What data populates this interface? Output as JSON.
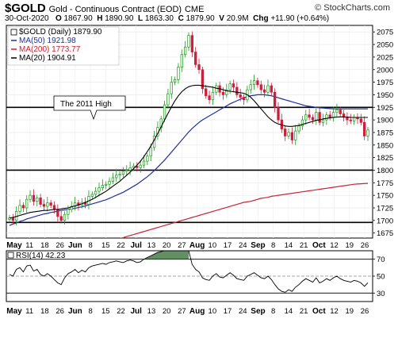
{
  "header": {
    "symbol": "$GOLD",
    "description": "Gold - Continuous Contract (EOD)",
    "exchange": "CME",
    "brand": "© StockCharts.com",
    "date": "30-Oct-2020",
    "open_label": "O",
    "open": "1867.90",
    "high_label": "H",
    "high": "1890.90",
    "low_label": "L",
    "low": "1863.30",
    "close_label": "C",
    "close": "1879.90",
    "vol_label": "V",
    "volume": "20.9M",
    "chg_label": "Chg",
    "change": "+11.90 (+0.64%)"
  },
  "legend": {
    "main": "$GOLD (Daily) 1879.90",
    "ma50": "MA(50) 1921.98",
    "ma200": "MA(200) 1773.77",
    "ma20": "MA(20) 1904.91"
  },
  "annotation": "The 2011 High",
  "rsi_label": "RSI(14) 42.23",
  "colors": {
    "ma50": "#1f2fa3",
    "ma200": "#cc2233",
    "ma20": "#000000",
    "up": "#1a9a1a",
    "down": "#cc1f3a",
    "rsi_fill": "#2e6b2e"
  },
  "chart_data": {
    "type": "candlestick",
    "title": "$GOLD Gold - Continuous Contract (EOD)",
    "y_ticks": [
      1675,
      1700,
      1725,
      1750,
      1775,
      1800,
      1825,
      1850,
      1875,
      1900,
      1925,
      1950,
      1975,
      2000,
      2025,
      2050,
      2075
    ],
    "ylim": [
      1665,
      2088
    ],
    "horizontal_lines": [
      1925,
      1800,
      1696
    ],
    "x_labels_top": [
      "May",
      "11",
      "18",
      "26",
      "Jun",
      "8",
      "15",
      "22",
      "Jul",
      "13",
      "20",
      "27",
      "Aug",
      "10",
      "17",
      "24",
      "Sep",
      "8",
      "14",
      "21",
      "Oct",
      "12",
      "19",
      "26"
    ],
    "x_labels_bottom": [
      "May",
      "11",
      "18",
      "26",
      "Jun",
      "8",
      "15",
      "22",
      "Jul",
      "13",
      "20",
      "27",
      "Aug",
      "10",
      "17",
      "24",
      "Sep",
      "8",
      "14",
      "21",
      "Oct",
      "12",
      "19",
      "26"
    ],
    "close_series": [
      1705,
      1700,
      1718,
      1730,
      1725,
      1742,
      1750,
      1738,
      1745,
      1732,
      1728,
      1735,
      1730,
      1722,
      1708,
      1700,
      1712,
      1722,
      1728,
      1735,
      1730,
      1736,
      1732,
      1748,
      1752,
      1758,
      1765,
      1770,
      1772,
      1778,
      1785,
      1790,
      1792,
      1798,
      1800,
      1805,
      1808,
      1805,
      1810,
      1818,
      1828,
      1845,
      1868,
      1885,
      1902,
      1930,
      1952,
      1975,
      1980,
      2005,
      2030,
      2045,
      2068,
      2035,
      2010,
      2000,
      1962,
      1948,
      1940,
      1955,
      1968,
      1955,
      1950,
      1960,
      1972,
      1965,
      1950,
      1945,
      1940,
      1960,
      1970,
      1978,
      1970,
      1960,
      1955,
      1968,
      1955,
      1925,
      1900,
      1882,
      1868,
      1875,
      1860,
      1878,
      1888,
      1900,
      1910,
      1905,
      1900,
      1915,
      1895,
      1900,
      1910,
      1905,
      1915,
      1920,
      1912,
      1905,
      1900,
      1898,
      1905,
      1902,
      1895,
      1868,
      1879.9
    ],
    "ma20_series": [
      1705,
      1706,
      1708,
      1710,
      1712,
      1714,
      1716,
      1717,
      1718,
      1719,
      1720,
      1720,
      1721,
      1722,
      1722,
      1723,
      1724,
      1725,
      1727,
      1729,
      1731,
      1733,
      1736,
      1739,
      1742,
      1746,
      1750,
      1754,
      1758,
      1763,
      1768,
      1773,
      1778,
      1784,
      1790,
      1796,
      1803,
      1810,
      1818,
      1827,
      1837,
      1848,
      1860,
      1873,
      1886,
      1900,
      1913,
      1926,
      1938,
      1948,
      1956,
      1962,
      1966,
      1968,
      1969,
      1969,
      1968,
      1967,
      1966,
      1965,
      1963,
      1962,
      1960,
      1958,
      1957,
      1956,
      1955,
      1954,
      1953,
      1950,
      1945,
      1938,
      1930,
      1922,
      1914,
      1906,
      1900,
      1895,
      1892,
      1890,
      1888,
      1887,
      1887,
      1888,
      1889,
      1891,
      1893,
      1895,
      1897,
      1899,
      1900,
      1902,
      1903,
      1904,
      1905,
      1905.5,
      1906,
      1906,
      1905.5,
      1905,
      1904.91,
      1904.91,
      1904.91,
      1904.91,
      1904.91
    ],
    "ma50_series": [
      1690,
      1693,
      1695,
      1698,
      1700,
      1703,
      1705,
      1707,
      1709,
      1711,
      1713,
      1714,
      1716,
      1717,
      1719,
      1720,
      1721,
      1722,
      1723,
      1724,
      1726,
      1727,
      1729,
      1731,
      1733,
      1735,
      1737,
      1739,
      1741,
      1744,
      1747,
      1750,
      1753,
      1756,
      1760,
      1764,
      1768,
      1772,
      1777,
      1782,
      1787,
      1793,
      1799,
      1806,
      1813,
      1820,
      1828,
      1836,
      1844,
      1852,
      1860,
      1868,
      1876,
      1883,
      1889,
      1895,
      1900,
      1904,
      1908,
      1912,
      1916,
      1920,
      1924,
      1928,
      1932,
      1935,
      1938,
      1941,
      1944,
      1946,
      1948,
      1949,
      1950,
      1950,
      1950,
      1949,
      1948,
      1946,
      1944,
      1942,
      1940,
      1938,
      1936,
      1934,
      1932,
      1930,
      1928,
      1927,
      1926,
      1925,
      1924,
      1923.5,
      1923,
      1922.5,
      1922,
      1921.98,
      1921.98,
      1921.98,
      1921.98,
      1921.98,
      1921.98,
      1921.98,
      1921.98,
      1921.98,
      1921.98
    ],
    "ma200_series": [
      1600,
      1602,
      1604,
      1606,
      1608,
      1610,
      1612,
      1614,
      1616,
      1618,
      1620,
      1622,
      1624,
      1626,
      1628,
      1630,
      1632,
      1634,
      1636,
      1638,
      1640,
      1642,
      1644,
      1646,
      1648,
      1650,
      1652,
      1654,
      1656,
      1658,
      1660,
      1662,
      1664,
      1666,
      1668,
      1670,
      1672,
      1674,
      1676,
      1678,
      1680,
      1682,
      1684,
      1686,
      1688,
      1690,
      1692,
      1694,
      1696,
      1698,
      1700,
      1702,
      1704,
      1706,
      1708,
      1710,
      1712,
      1714,
      1716,
      1718,
      1720,
      1722,
      1724,
      1726,
      1728,
      1730,
      1732,
      1734,
      1736,
      1737,
      1738,
      1740,
      1742,
      1744,
      1745,
      1746,
      1748,
      1749,
      1750,
      1751,
      1752,
      1753,
      1754,
      1755,
      1756,
      1757,
      1758,
      1759,
      1760,
      1761,
      1762,
      1763,
      1764,
      1765,
      1766,
      1767,
      1768,
      1769,
      1770,
      1771,
      1772,
      1772.5,
      1773,
      1773.5,
      1773.77
    ],
    "rsi": {
      "name": "RSI(14)",
      "ylim": [
        20,
        80
      ],
      "y_ticks": [
        30,
        50,
        70
      ],
      "levels": [
        30,
        70
      ],
      "values": [
        52,
        50,
        58,
        60,
        55,
        62,
        63,
        56,
        58,
        52,
        50,
        53,
        50,
        46,
        42,
        40,
        48,
        53,
        55,
        58,
        54,
        57,
        55,
        60,
        62,
        63,
        64,
        65,
        64,
        66,
        67,
        68,
        67,
        66,
        68,
        69,
        68,
        66,
        67,
        70,
        72,
        74,
        76,
        78,
        79,
        80,
        80,
        81,
        80,
        82,
        83,
        81,
        82,
        64,
        58,
        55,
        48,
        46,
        45,
        50,
        53,
        49,
        48,
        51,
        54,
        51,
        47,
        46,
        45,
        50,
        52,
        54,
        51,
        48,
        47,
        50,
        46,
        40,
        35,
        32,
        31,
        34,
        32,
        37,
        40,
        44,
        47,
        45,
        43,
        48,
        42,
        44,
        47,
        45,
        48,
        50,
        47,
        45,
        44,
        43,
        45,
        44,
        42,
        38,
        42.23
      ]
    }
  }
}
